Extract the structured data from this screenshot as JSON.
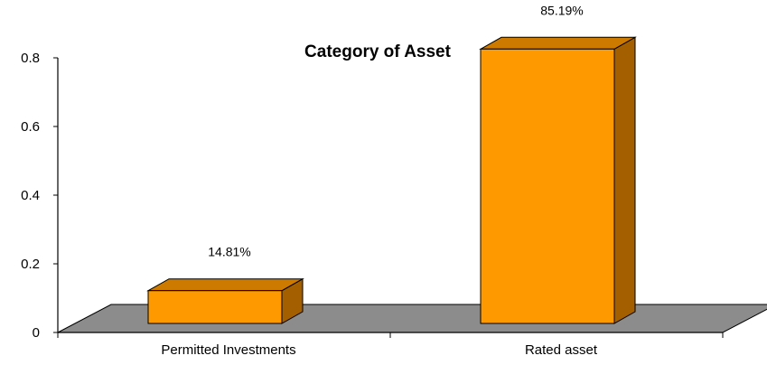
{
  "chart_data": {
    "type": "bar",
    "title": "Category  of Asset",
    "categories": [
      "Permitted Investments",
      "Rated asset"
    ],
    "values": [
      0.1481,
      0.8519
    ],
    "data_labels": [
      "14.81%",
      "85.19%"
    ],
    "y_ticks": [
      "0",
      "0.2",
      "0.4",
      "0.6",
      "0.8"
    ],
    "ylim": [
      0,
      0.8
    ],
    "xlabel": "",
    "ylabel": "",
    "grid": false,
    "legend": "none",
    "style": "3d",
    "colors": {
      "bar_front": "#FF9900",
      "bar_top": "#CC7A00",
      "bar_side": "#A35F00",
      "floor": "#8C8C8C",
      "axis": "#000000"
    }
  }
}
